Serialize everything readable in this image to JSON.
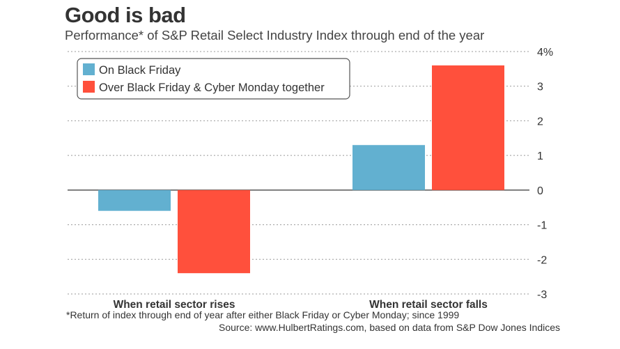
{
  "chart_data": {
    "type": "bar",
    "title": "Good is bad",
    "subtitle": "Performance* of S&P Retail Select Industry Index through end of the year",
    "categories": [
      "When retail sector rises",
      "When retail sector falls"
    ],
    "series": [
      {
        "name": "On Black Friday",
        "color": "#62b0d0",
        "values": [
          -0.6,
          1.3
        ]
      },
      {
        "name": "Over Black Friday & Cyber Monday together",
        "color": "#ff503c",
        "values": [
          -2.4,
          3.6
        ]
      }
    ],
    "yticks": [
      {
        "value": 4,
        "label": "4%"
      },
      {
        "value": 3,
        "label": "3"
      },
      {
        "value": 2,
        "label": "2"
      },
      {
        "value": 1,
        "label": "1"
      },
      {
        "value": 0,
        "label": "0"
      },
      {
        "value": -1,
        "label": "-1"
      },
      {
        "value": -2,
        "label": "-2"
      },
      {
        "value": -3,
        "label": "-3"
      }
    ],
    "ylim": [
      -3,
      4
    ],
    "grid": true,
    "legend_position": "top-left",
    "xlabel": "",
    "ylabel": ""
  },
  "footnote": "*Return of index through end of year after either Black Friday or Cyber Monday; since 1999",
  "source": "Source: www.HulbertRatings.com, based on data from S&P Dow Jones Indices"
}
